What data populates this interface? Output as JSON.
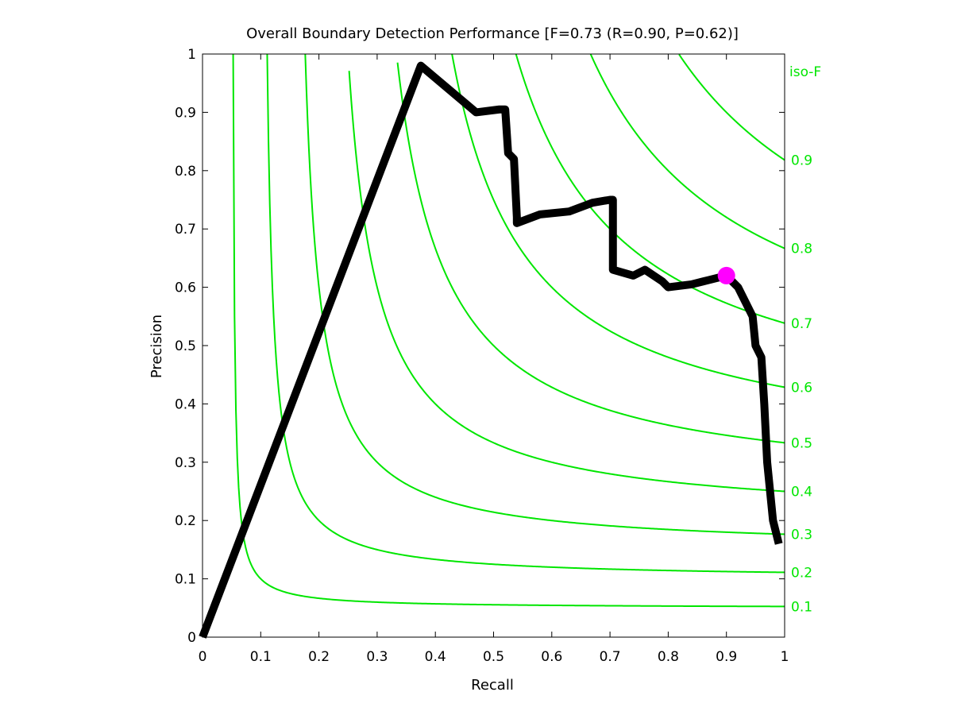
{
  "chart_data": {
    "type": "line",
    "title": "Overall Boundary Detection Performance [F=0.73 (R=0.90, P=0.62)]",
    "xlabel": "Recall",
    "ylabel": "Precision",
    "xlim": [
      0,
      1
    ],
    "ylim": [
      0,
      1
    ],
    "x_ticks": [
      "0",
      "0.1",
      "0.2",
      "0.3",
      "0.4",
      "0.5",
      "0.6",
      "0.7",
      "0.8",
      "0.9",
      "1"
    ],
    "y_ticks": [
      "0",
      "0.1",
      "0.2",
      "0.3",
      "0.4",
      "0.5",
      "0.6",
      "0.7",
      "0.8",
      "0.9",
      "1"
    ],
    "grid": false,
    "colors": {
      "curve": "#000000",
      "iso": "#00e600",
      "marker": "#ff00ff"
    },
    "iso_f_title": "iso-F",
    "iso_f": [
      {
        "value": 0.1,
        "label": "0.1"
      },
      {
        "value": 0.2,
        "label": "0.2"
      },
      {
        "value": 0.3,
        "label": "0.3"
      },
      {
        "value": 0.4,
        "label": "0.4"
      },
      {
        "value": 0.5,
        "label": "0.5"
      },
      {
        "value": 0.6,
        "label": "0.6"
      },
      {
        "value": 0.7,
        "label": "0.7"
      },
      {
        "value": 0.8,
        "label": "0.8"
      },
      {
        "value": 0.9,
        "label": "0.9"
      }
    ],
    "series": [
      {
        "x": [
          0.0,
          0.375,
          0.47,
          0.51,
          0.52,
          0.525,
          0.535,
          0.54,
          0.54,
          0.58,
          0.63,
          0.67,
          0.7,
          0.705,
          0.705,
          0.74,
          0.76,
          0.79,
          0.8,
          0.84,
          0.86,
          0.9,
          0.92,
          0.945,
          0.95,
          0.96,
          0.965,
          0.97,
          0.98,
          0.99
        ],
        "y": [
          0.0,
          0.98,
          0.9,
          0.905,
          0.905,
          0.83,
          0.82,
          0.72,
          0.71,
          0.725,
          0.73,
          0.745,
          0.75,
          0.75,
          0.63,
          0.62,
          0.63,
          0.61,
          0.6,
          0.605,
          0.61,
          0.62,
          0.6,
          0.55,
          0.5,
          0.48,
          0.4,
          0.3,
          0.2,
          0.16
        ]
      }
    ],
    "best_point": {
      "recall": 0.9,
      "precision": 0.62
    }
  }
}
